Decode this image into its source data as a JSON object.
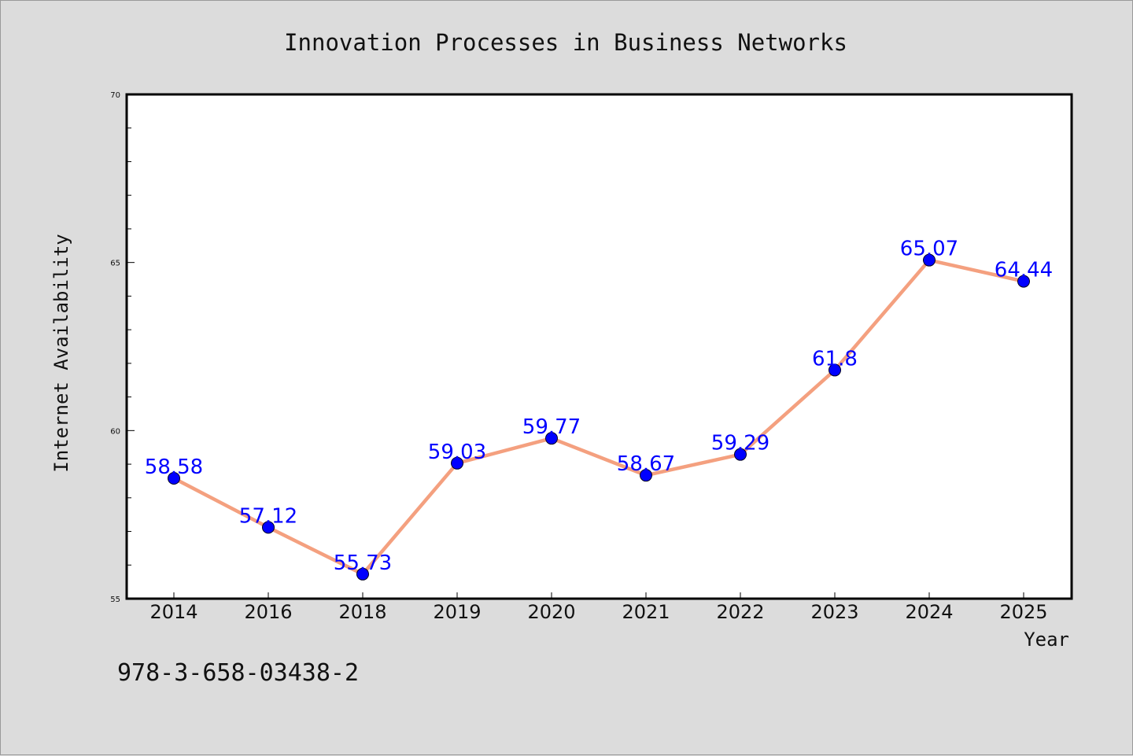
{
  "chart_data": {
    "type": "line",
    "title": "Innovation Processes in Business Networks",
    "xlabel": "Year",
    "ylabel": "Internet Availability",
    "categories": [
      "2014",
      "2016",
      "2018",
      "2019",
      "2020",
      "2021",
      "2022",
      "2023",
      "2024",
      "2025"
    ],
    "series": [
      {
        "values": [
          58.58,
          57.12,
          55.73,
          59.03,
          59.77,
          58.67,
          59.29,
          61.8,
          65.07,
          64.44
        ],
        "labels": [
          "58.58",
          "57.12",
          "55.73",
          "59.03",
          "59.77",
          "58.67",
          "59.29",
          "61.8",
          "65.07",
          "64.44"
        ],
        "line_color": "#f4a07f",
        "marker_color": "#0000ff",
        "label_color": "#0000ff"
      }
    ],
    "ylim": [
      55,
      70
    ],
    "yticks_major": [
      55,
      60,
      65,
      70
    ],
    "yticks_major_labels": [
      "55",
      "60",
      "65",
      "70"
    ],
    "ytick_minor_step": 1,
    "grid": false,
    "legend": "none",
    "background_color": "#dcdcdc",
    "plot_background_color": "#ffffff"
  },
  "footer": {
    "isbn": "978-3-658-03438-2"
  }
}
